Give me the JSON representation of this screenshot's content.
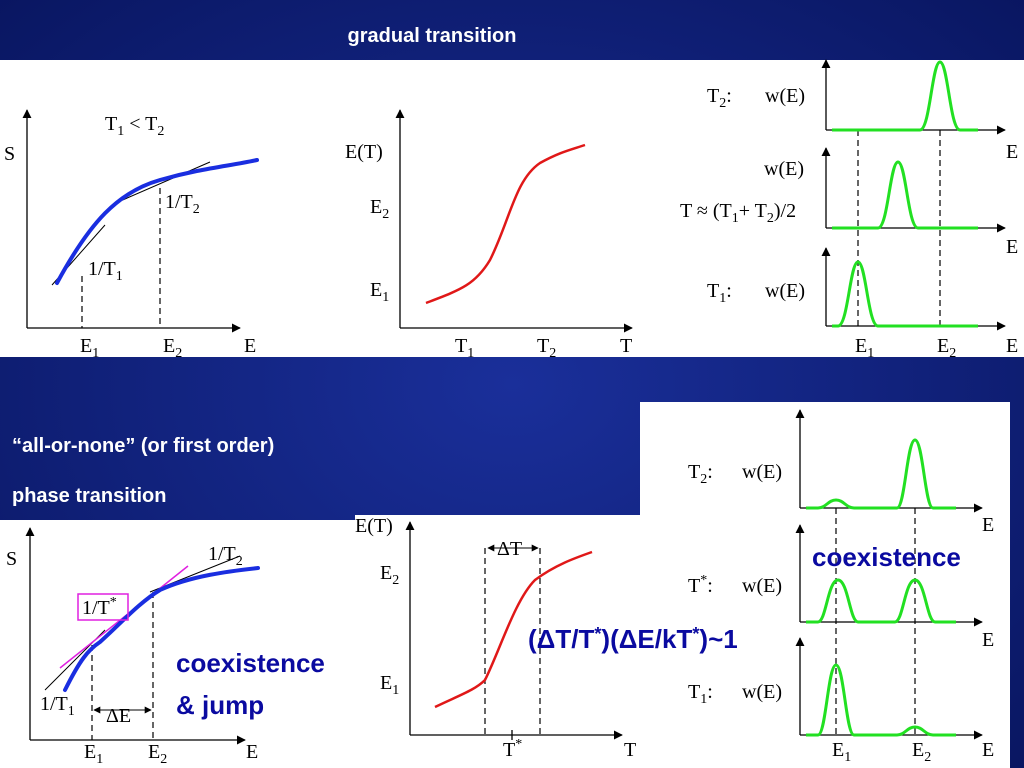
{
  "title": "gradual transition",
  "gradual": {
    "entropy_plot": {
      "y_axis": "S",
      "x_axis": "E",
      "condition": [
        "T",
        {
          "sub": "1"
        },
        " < T",
        {
          "sub": "2"
        }
      ],
      "slope_high": [
        "1/T",
        {
          "sub": "2"
        }
      ],
      "slope_low": [
        "1/T",
        {
          "sub": "1"
        }
      ],
      "e1": [
        "E",
        {
          "sub": "1"
        }
      ],
      "e2": [
        "E",
        {
          "sub": "2"
        }
      ]
    },
    "energy_plot": {
      "y_axis": "E(T)",
      "x_axis": "T",
      "e2": [
        "E",
        {
          "sub": "2"
        }
      ],
      "e1": [
        "E",
        {
          "sub": "1"
        }
      ],
      "t1": [
        "T",
        {
          "sub": "1"
        }
      ],
      "t2": [
        "T",
        {
          "sub": "2"
        }
      ]
    },
    "distributions": {
      "high": {
        "temperature": [
          "T",
          {
            "sub": "2"
          },
          ":"
        ],
        "function": "w(E)",
        "x_axis": "E"
      },
      "middle": {
        "temperature": [
          "T ≈ (T",
          {
            "sub": "1"
          },
          "+ T",
          {
            "sub": "2"
          },
          ")/2"
        ],
        "function": "w(E)",
        "x_axis": "E"
      },
      "low": {
        "temperature": [
          "T",
          {
            "sub": "1"
          },
          ":"
        ],
        "function": "w(E)",
        "x_axis": "E"
      },
      "e1": [
        "E",
        {
          "sub": "1"
        }
      ],
      "e2": [
        "E",
        {
          "sub": "2"
        }
      ]
    }
  },
  "first_order": {
    "heading": [
      "“all-or-none” (or first order)",
      "phase transition"
    ],
    "entropy_plot": {
      "y_axis": "S",
      "x_axis": "E",
      "slope_high": [
        "1/T",
        {
          "sub": "2"
        }
      ],
      "slope_mid": [
        "1/T",
        {
          "sup": "*"
        }
      ],
      "slope_low": [
        "1/T",
        {
          "sub": "1"
        }
      ],
      "note": [
        "coexistence",
        "& jump"
      ],
      "gap": "ΔE",
      "e1": [
        "E",
        {
          "sub": "1"
        }
      ],
      "e2": [
        "E",
        {
          "sub": "2"
        }
      ]
    },
    "energy_plot": {
      "y_axis": "E(T)",
      "x_axis": "T",
      "e2": [
        "E",
        {
          "sub": "2"
        }
      ],
      "e1": [
        "E",
        {
          "sub": "1"
        }
      ],
      "gap": "ΔT",
      "t_star": [
        "T",
        {
          "sup": "*"
        }
      ],
      "relation": [
        "(ΔT/T",
        {
          "sup": "*"
        },
        ")(ΔE/kT",
        {
          "sup": "*"
        },
        ")~1"
      ]
    },
    "distributions": {
      "high": {
        "temperature": [
          "T",
          {
            "sub": "2"
          },
          ":"
        ],
        "function": "w(E)",
        "x_axis": "E"
      },
      "middle": {
        "note": "coexistence",
        "temperature": [
          "T",
          {
            "sup": "*"
          },
          ":"
        ],
        "function": "w(E)",
        "x_axis": "E"
      },
      "low": {
        "temperature": [
          "T",
          {
            "sub": "1"
          },
          ":"
        ],
        "function": "w(E)",
        "x_axis": "E"
      },
      "e1": [
        "E",
        {
          "sub": "1"
        }
      ],
      "e2": [
        "E",
        {
          "sub": "2"
        }
      ]
    }
  }
}
